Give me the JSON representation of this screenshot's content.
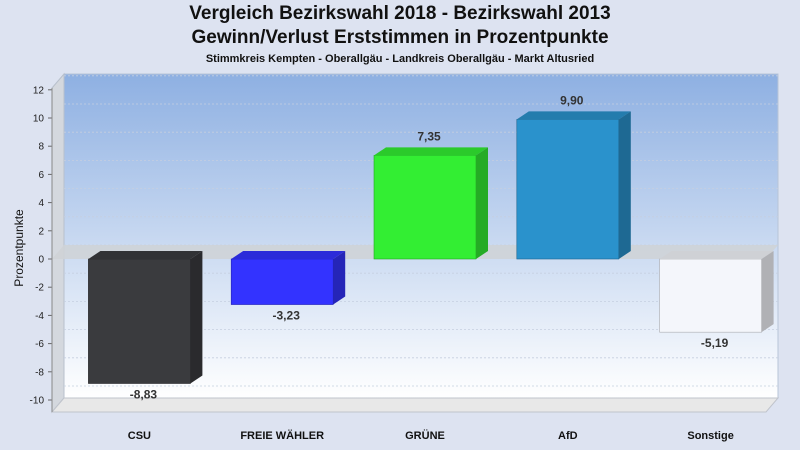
{
  "chart_data": {
    "type": "bar",
    "title": "Vergleich Bezirkswahl 2018 - Bezirkswahl 2013",
    "title_line2": "Gewinn/Verlust Erststimmen in Prozentpunkte",
    "subtitle": "Stimmkreis Kempten - Oberallgäu - Landkreis Oberallgäu - Markt Altusried",
    "ylabel": "Prozentpunkte",
    "xlabel": "",
    "ylim": [
      -11.5,
      13
    ],
    "yticks": [
      12,
      10,
      8,
      6,
      4,
      2,
      0,
      -2,
      -4,
      -6,
      -8,
      -10
    ],
    "categories": [
      "CSU",
      "FREIE WÄHLER",
      "GRÜNE",
      "AfD",
      "Sonstige"
    ],
    "values": [
      -8.83,
      -3.23,
      7.35,
      9.9,
      -5.19
    ],
    "data_labels": [
      "-8,83",
      "-3,23",
      "7,35",
      "9,90",
      "-5,19"
    ],
    "colors": [
      "#3a3b3e",
      "#3333ff",
      "#33ee33",
      "#2a92cc",
      "#f4f6fb"
    ],
    "grid": true,
    "legend": "none"
  }
}
